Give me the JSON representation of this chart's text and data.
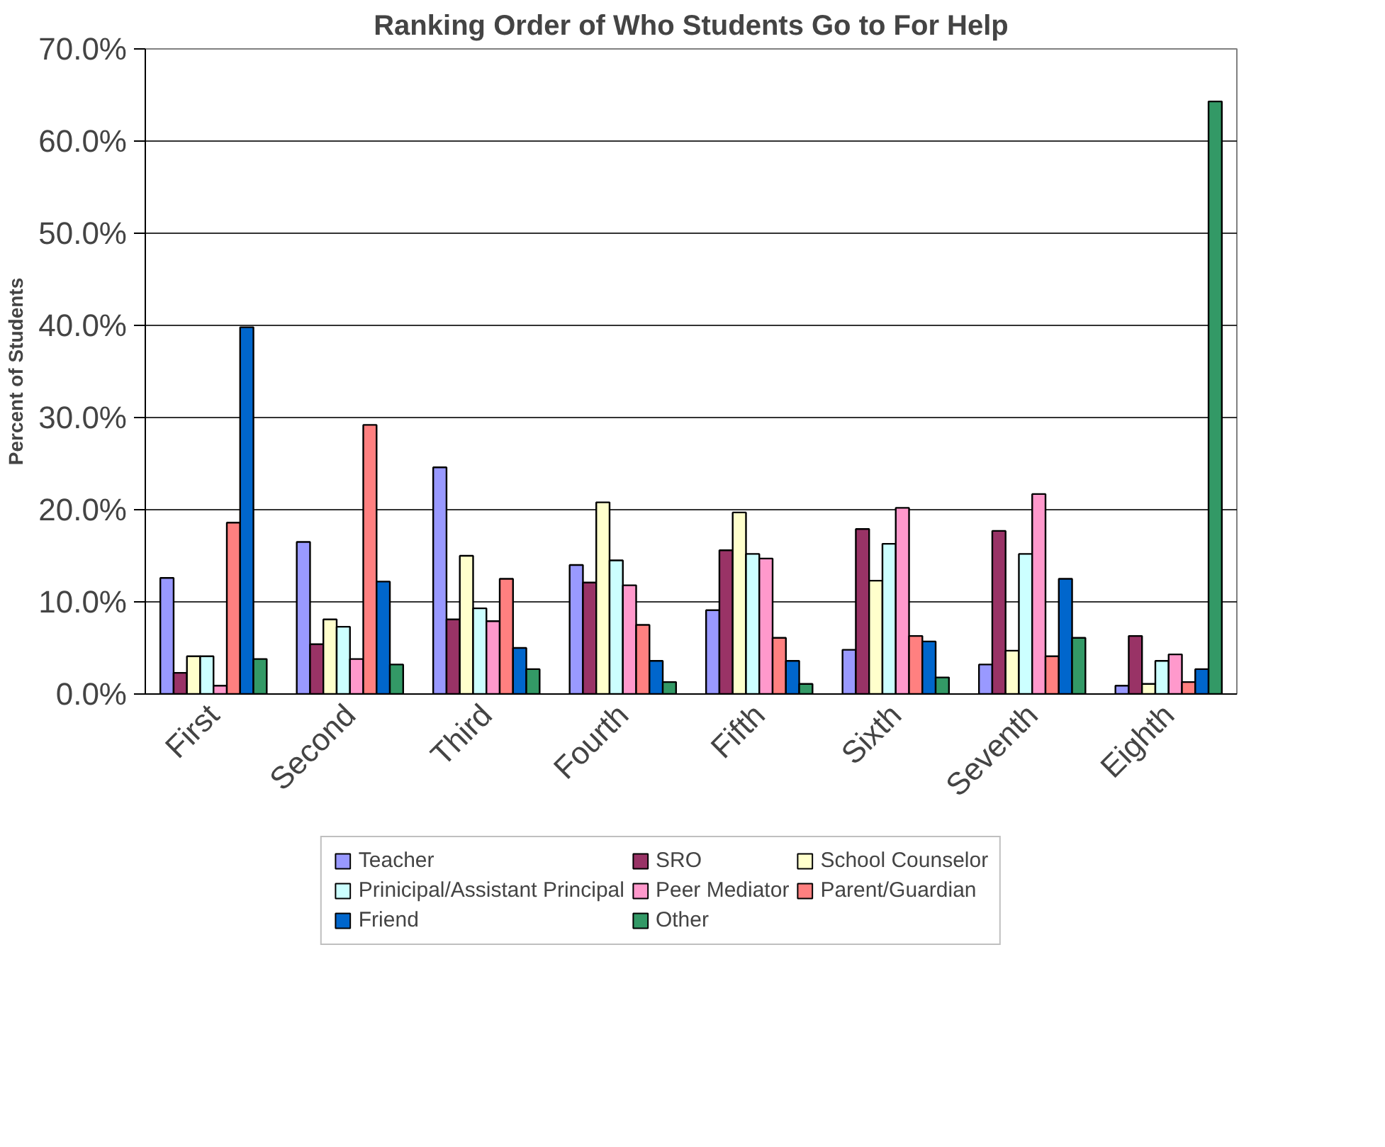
{
  "chart_data": {
    "type": "bar",
    "title": "Ranking Order of Who Students Go to For Help",
    "ylabel": "Percent of Students",
    "categories": [
      "First",
      "Second",
      "Third",
      "Fourth",
      "Fifth",
      "Sixth",
      "Seventh",
      "Eighth"
    ],
    "series": [
      {
        "name": "Teacher",
        "color": "#9999ff",
        "values": [
          12.6,
          16.5,
          24.6,
          14.0,
          9.1,
          4.8,
          3.2,
          0.9
        ]
      },
      {
        "name": "SRO",
        "color": "#993366",
        "values": [
          2.3,
          5.4,
          8.1,
          12.1,
          15.6,
          17.9,
          17.7,
          6.3
        ]
      },
      {
        "name": "School Counselor",
        "color": "#ffffcc",
        "values": [
          4.1,
          8.1,
          15.0,
          20.8,
          19.7,
          12.3,
          4.7,
          1.1
        ]
      },
      {
        "name": "Prinicipal/Assistant Principal",
        "color": "#ccffff",
        "values": [
          4.1,
          7.3,
          9.3,
          14.5,
          15.2,
          16.3,
          15.2,
          3.6
        ]
      },
      {
        "name": "Peer Mediator",
        "color": "#ff99cc",
        "values": [
          0.9,
          3.8,
          7.9,
          11.8,
          14.7,
          20.2,
          21.7,
          4.3
        ]
      },
      {
        "name": "Parent/Guardian",
        "color": "#ff8080",
        "values": [
          18.6,
          29.2,
          12.5,
          7.5,
          6.1,
          6.3,
          4.1,
          1.3
        ]
      },
      {
        "name": "Friend",
        "color": "#0066cc",
        "values": [
          39.8,
          12.2,
          5.0,
          3.6,
          3.6,
          5.7,
          12.5,
          2.7
        ]
      },
      {
        "name": "Other",
        "color": "#339966",
        "values": [
          3.8,
          3.2,
          2.7,
          1.3,
          1.1,
          1.8,
          6.1,
          64.3
        ]
      }
    ],
    "ylim": [
      0,
      70
    ],
    "yticks": [
      {
        "value": 0,
        "label": "0.0%"
      },
      {
        "value": 10,
        "label": "10.0%"
      },
      {
        "value": 20,
        "label": "20.0%"
      },
      {
        "value": 30,
        "label": "30.0%"
      },
      {
        "value": 40,
        "label": "40.0%"
      },
      {
        "value": 50,
        "label": "50.0%"
      },
      {
        "value": 60,
        "label": "60.0%"
      },
      {
        "value": 70,
        "label": "70.0%"
      }
    ],
    "grid": "y",
    "legend": "bottom"
  }
}
